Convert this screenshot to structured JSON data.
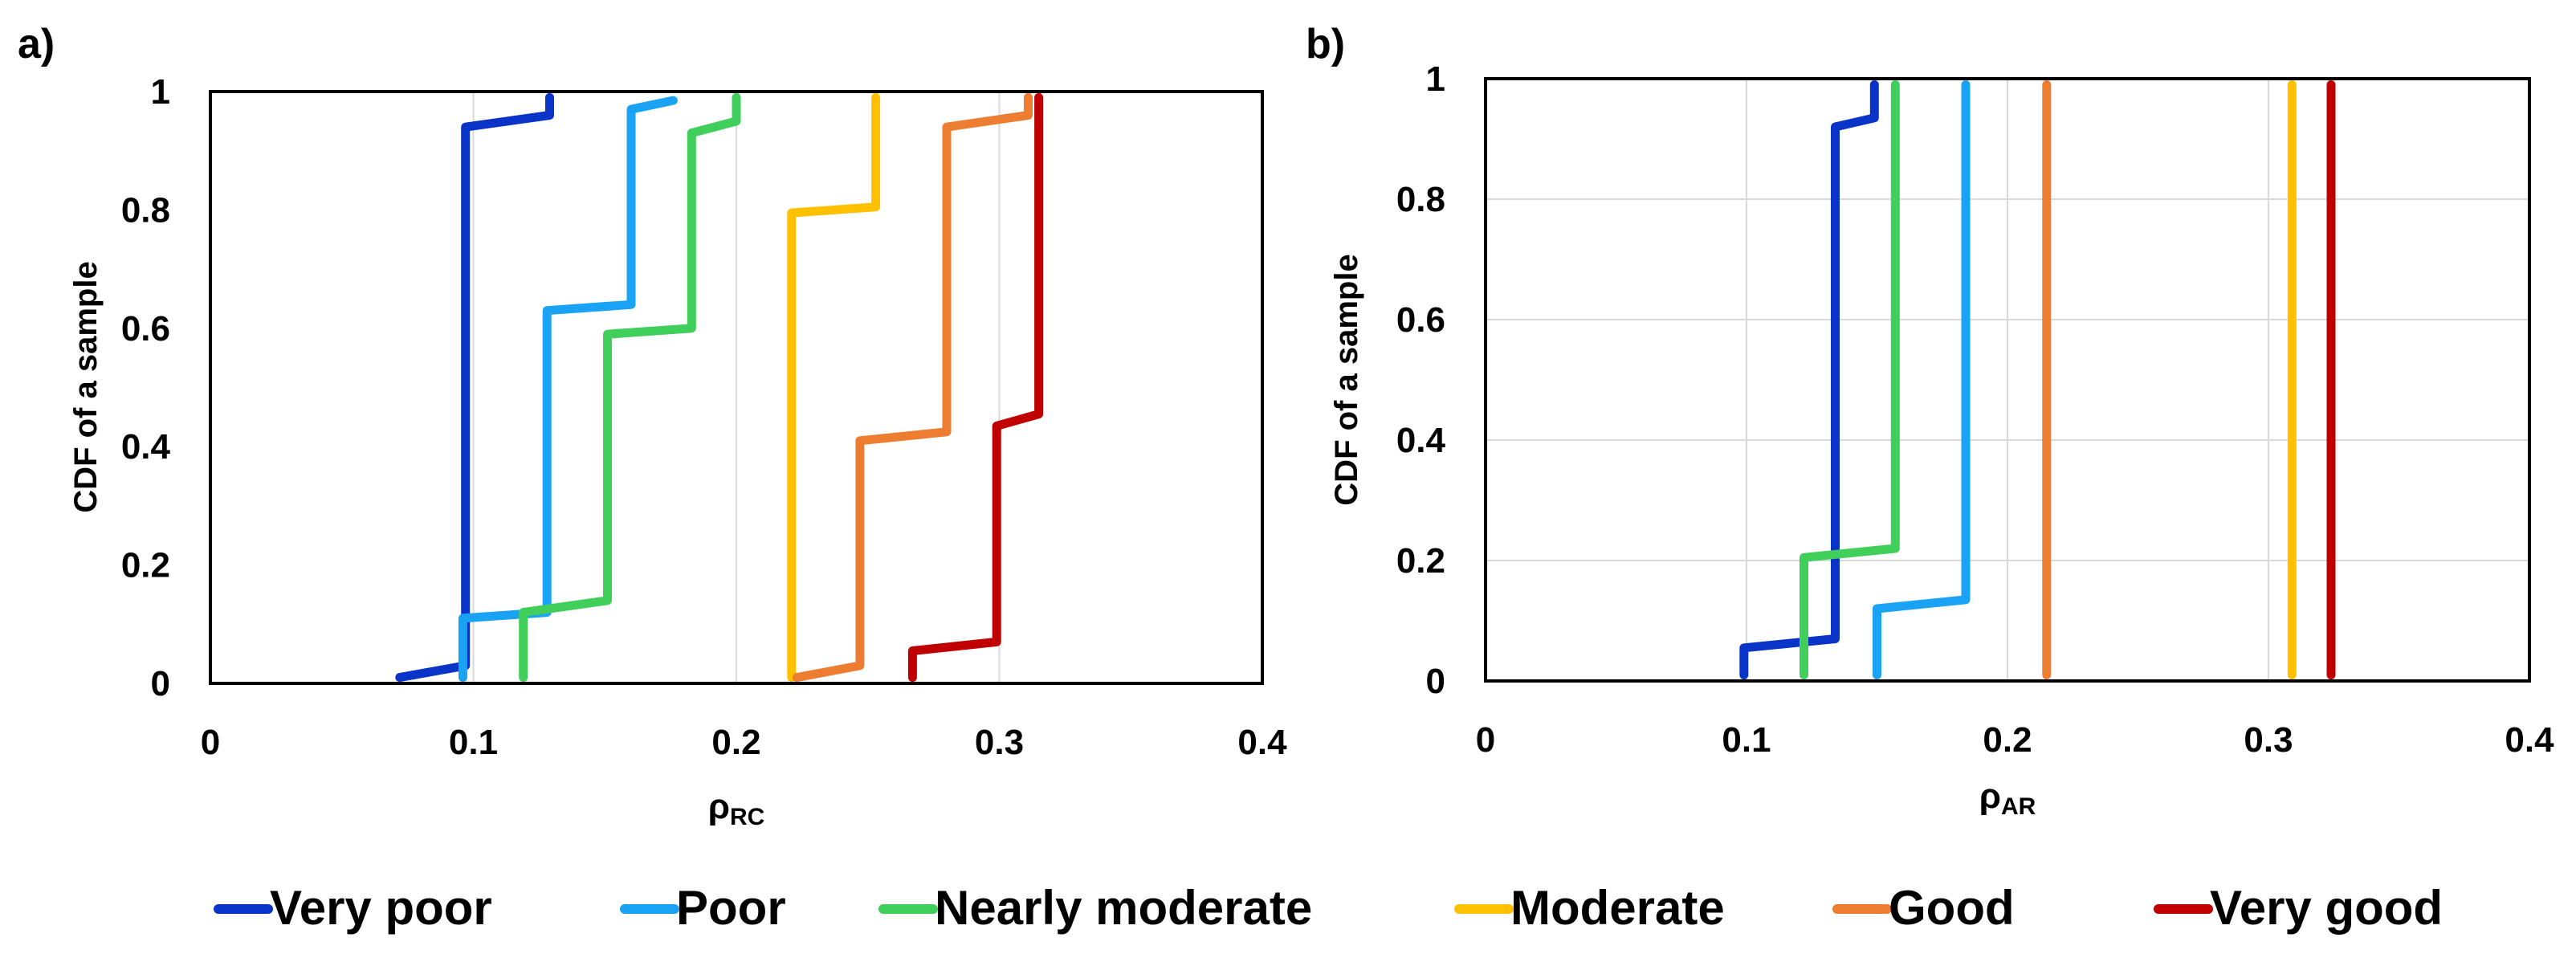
{
  "chart_data": [
    {
      "panel_label": "a)",
      "type": "line",
      "subtype": "step-cdf",
      "xlabel": {
        "main": "ρ",
        "sub": "RC"
      },
      "ylabel": "CDF of a sample",
      "xlim": [
        0,
        0.4
      ],
      "ylim": [
        0,
        1
      ],
      "xticks": [
        "0",
        "0.1",
        "0.2",
        "0.3",
        "0.4"
      ],
      "yticks": [
        "0",
        "0.2",
        "0.4",
        "0.6",
        "0.8",
        "1"
      ],
      "xtick_values": [
        0,
        0.1,
        0.2,
        0.3,
        0.4
      ],
      "ytick_values": [
        0,
        0.2,
        0.4,
        0.6,
        0.8,
        1
      ],
      "grid": "vertical",
      "series": [
        {
          "name": "Very poor",
          "color": "#0a34c8",
          "x": [
            0.072,
            0.097,
            0.097,
            0.129,
            0.129
          ],
          "y": [
            0.01,
            0.03,
            0.94,
            0.96,
            0.99
          ]
        },
        {
          "name": "Poor",
          "color": "#1aa3f5",
          "x": [
            0.096,
            0.096,
            0.128,
            0.128,
            0.16,
            0.16,
            0.176
          ],
          "y": [
            0.01,
            0.11,
            0.12,
            0.63,
            0.64,
            0.97,
            0.985
          ]
        },
        {
          "name": "Nearly moderate",
          "color": "#3fcf5a",
          "x": [
            0.119,
            0.119,
            0.151,
            0.151,
            0.183,
            0.183,
            0.2,
            0.2
          ],
          "y": [
            0.01,
            0.12,
            0.14,
            0.59,
            0.6,
            0.93,
            0.95,
            0.99
          ]
        },
        {
          "name": "Moderate",
          "color": "#ffc000",
          "x": [
            0.221,
            0.221,
            0.253,
            0.253
          ],
          "y": [
            0.01,
            0.795,
            0.805,
            0.99
          ]
        },
        {
          "name": "Good",
          "color": "#ed7d31",
          "x": [
            0.223,
            0.247,
            0.247,
            0.28,
            0.28,
            0.311,
            0.311
          ],
          "y": [
            0.01,
            0.03,
            0.41,
            0.425,
            0.94,
            0.96,
            0.99
          ]
        },
        {
          "name": "Very good",
          "color": "#c00000",
          "x": [
            0.267,
            0.267,
            0.299,
            0.299,
            0.315,
            0.315
          ],
          "y": [
            0.01,
            0.055,
            0.07,
            0.435,
            0.455,
            0.99
          ]
        }
      ]
    },
    {
      "panel_label": "b)",
      "type": "line",
      "subtype": "step-cdf",
      "xlabel": {
        "main": "ρ",
        "sub": "AR"
      },
      "ylabel": "CDF of a sample",
      "xlim": [
        0,
        0.4
      ],
      "ylim": [
        0,
        1
      ],
      "xticks": [
        "0",
        "0.1",
        "0.2",
        "0.3",
        "0.4"
      ],
      "yticks": [
        "0",
        "0.2",
        "0.4",
        "0.6",
        "0.8",
        "1"
      ],
      "xtick_values": [
        0,
        0.1,
        0.2,
        0.3,
        0.4
      ],
      "ytick_values": [
        0,
        0.2,
        0.4,
        0.6,
        0.8,
        1
      ],
      "grid": "both",
      "series": [
        {
          "name": "Very poor",
          "color": "#0a34c8",
          "x": [
            0.099,
            0.099,
            0.134,
            0.134,
            0.149,
            0.149
          ],
          "y": [
            0.01,
            0.055,
            0.07,
            0.92,
            0.935,
            0.99
          ]
        },
        {
          "name": "Poor",
          "color": "#1aa3f5",
          "x": [
            0.15,
            0.15,
            0.184,
            0.184
          ],
          "y": [
            0.01,
            0.12,
            0.135,
            0.99
          ]
        },
        {
          "name": "Nearly moderate",
          "color": "#3fcf5a",
          "x": [
            0.122,
            0.122,
            0.157,
            0.157
          ],
          "y": [
            0.01,
            0.205,
            0.22,
            0.99
          ]
        },
        {
          "name": "Moderate",
          "color": "#ffc000",
          "x": [
            0.309,
            0.309
          ],
          "y": [
            0.01,
            0.99
          ]
        },
        {
          "name": "Good",
          "color": "#ed7d31",
          "x": [
            0.215,
            0.215
          ],
          "y": [
            0.01,
            0.99
          ]
        },
        {
          "name": "Very good",
          "color": "#c00000",
          "x": [
            0.324,
            0.324
          ],
          "y": [
            0.01,
            0.99
          ]
        }
      ]
    }
  ],
  "legend": {
    "position": "bottom-center",
    "items": [
      {
        "name": "Very poor",
        "color": "#0a34c8"
      },
      {
        "name": "Poor",
        "color": "#1aa3f5"
      },
      {
        "name": "Nearly moderate",
        "color": "#3fcf5a"
      },
      {
        "name": "Moderate",
        "color": "#ffc000"
      },
      {
        "name": "Good",
        "color": "#ed7d31"
      },
      {
        "name": "Very good",
        "color": "#c00000"
      }
    ]
  }
}
